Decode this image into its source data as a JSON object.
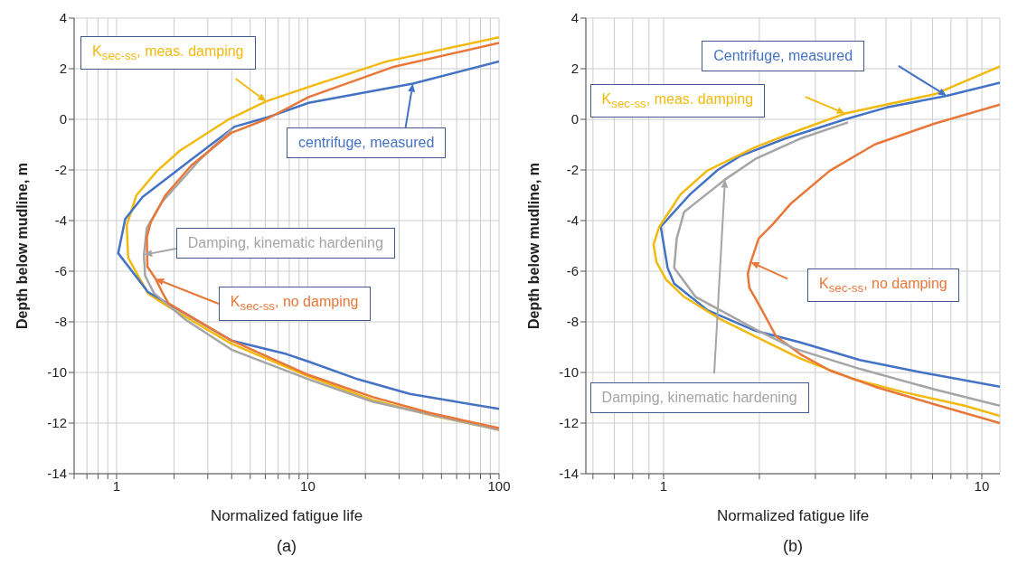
{
  "chart_data": [
    {
      "type": "line",
      "xlabel": "Normalized fatigue life",
      "ylabel": "Depth below mudline, m",
      "log": "x",
      "grid": true,
      "xlim": [
        0.6,
        100
      ],
      "ylim": [
        -14,
        4
      ],
      "xticks": [
        {
          "value": 0.6,
          "label": null
        },
        {
          "value": 0.7,
          "label": null
        },
        {
          "value": 0.8,
          "label": null
        },
        {
          "value": 0.9,
          "label": null
        },
        1,
        {
          "value": 2,
          "label": null
        },
        {
          "value": 3,
          "label": null
        },
        {
          "value": 4,
          "label": null
        },
        {
          "value": 5,
          "label": null
        },
        {
          "value": 6,
          "label": null
        },
        {
          "value": 7,
          "label": null
        },
        {
          "value": 8,
          "label": null
        },
        {
          "value": 9,
          "label": null
        },
        10,
        {
          "value": 20,
          "label": null
        },
        {
          "value": 30,
          "label": null
        },
        {
          "value": 40,
          "label": null
        },
        {
          "value": 50,
          "label": null
        },
        {
          "value": 60,
          "label": null
        },
        {
          "value": 70,
          "label": null
        },
        {
          "value": 80,
          "label": null
        },
        {
          "value": 90,
          "label": null
        },
        100
      ],
      "yticks": [
        -14,
        -12,
        -10,
        -8,
        -6,
        -4,
        -2,
        0,
        2,
        4
      ],
      "annotations": [
        "(a)"
      ],
      "series": [
        {
          "name": "K$_{sec-ss}$, meas. damping",
          "color": "#f2b90f",
          "x": [
            100,
            25.9,
            10.2,
            6.05,
            3.86,
            2.14,
            1.62,
            1.27,
            1.13,
            1.15,
            1.46,
            1.8,
            3.98,
            10,
            21.8,
            43.5,
            100
          ],
          "values": [
            3.24,
            2.29,
            1.29,
            0.71,
            0,
            -1.24,
            -2.06,
            -3.0,
            -4.18,
            -5.47,
            -6.88,
            -7.33,
            -8.86,
            -10.15,
            -11.09,
            -11.68,
            -12.27
          ]
        },
        {
          "name": "centrifuge, measured",
          "color": "#4472c4",
          "x": [
            100,
            35.4,
            10.1,
            6.05,
            4.14,
            2.46,
            1.37,
            1.11,
            1.02,
            1.46,
            3.99,
            7.71,
            10.1,
            18.3,
            34.2,
            100
          ],
          "values": [
            2.29,
            1.41,
            0.65,
            0.06,
            -0.29,
            -1.59,
            -3.06,
            -3.94,
            -5.29,
            -6.82,
            -8.74,
            -9.27,
            -9.57,
            -10.27,
            -10.85,
            -11.44
          ]
        },
        {
          "name": "Damping, kinematic hardening",
          "color": "#a5a5a5",
          "x": [
            4.0,
            2.73,
            1.74,
            1.44,
            1.39,
            1.41,
            1.57,
            2.3,
            3.99,
            10.1,
            21.8,
            100
          ],
          "values": [
            -0.4,
            -1.59,
            -3.24,
            -4.29,
            -5.35,
            -6.18,
            -6.87,
            -7.92,
            -9.1,
            -10.27,
            -11.15,
            -12.27
          ]
        },
        {
          "name": "K$_{sec-ss}$, no damping",
          "color": "#e8773a",
          "x": [
            100,
            27.7,
            10.1,
            6.05,
            3.99,
            2.46,
            1.8,
            1.51,
            1.44,
            1.45,
            1.6,
            1.75,
            1.87,
            3.99,
            10.1,
            21.8,
            43.5,
            100
          ],
          "values": [
            3.02,
            2.06,
            0.88,
            0,
            -0.53,
            -1.82,
            -3.0,
            -4.06,
            -4.65,
            -5.82,
            -6.3,
            -6.9,
            -7.27,
            -8.74,
            -10.1,
            -10.97,
            -11.6,
            -12.2
          ]
        }
      ]
    },
    {
      "type": "line",
      "xlabel": "Normalized fatigue life",
      "ylabel": "Depth below mudline, m",
      "log": "x",
      "grid": true,
      "xlim": [
        0.57,
        11.4
      ],
      "ylim": [
        -14,
        4
      ],
      "xticks": [
        {
          "value": 0.6,
          "label": null
        },
        {
          "value": 0.7,
          "label": null
        },
        {
          "value": 0.8,
          "label": null
        },
        {
          "value": 0.9,
          "label": null
        },
        1,
        {
          "value": 2,
          "label": null
        },
        {
          "value": 3,
          "label": null
        },
        {
          "value": 4,
          "label": null
        },
        {
          "value": 5,
          "label": null
        },
        {
          "value": 6,
          "label": null
        },
        {
          "value": 7,
          "label": null
        },
        {
          "value": 8,
          "label": null
        },
        {
          "value": 9,
          "label": null
        },
        10
      ],
      "yticks": [
        -14,
        -12,
        -10,
        -8,
        -6,
        -4,
        -2,
        0,
        2,
        4
      ],
      "annotations": [
        "(b)"
      ],
      "series": [
        {
          "name": "Centrifuge, measured",
          "color": "#4472c4",
          "x": [
            11.4,
            7.75,
            5.03,
            3.72,
            2.41,
            1.74,
            1.48,
            1.21,
            0.98,
            1.03,
            1.08,
            1.37,
            1.94,
            2.69,
            4.14,
            6.37,
            11.4
          ],
          "values": [
            1.45,
            0.93,
            0.47,
            0,
            -0.76,
            -1.45,
            -2.0,
            -2.97,
            -4.24,
            -5.87,
            -6.49,
            -7.53,
            -8.35,
            -8.81,
            -9.51,
            -9.98,
            -10.56
          ]
        },
        {
          "name": "K$_{sec-ss}$, meas. damping",
          "color": "#f2b90f",
          "x": [
            11.4,
            7.1,
            3.72,
            2.69,
            1.94,
            1.37,
            1.13,
            0.97,
            0.93,
            0.95,
            1.02,
            1.16,
            1.5,
            1.94,
            2.69,
            3.96,
            5.73,
            8.83,
            11.4
          ],
          "values": [
            2.09,
            0.99,
            0.23,
            -0.41,
            -1.1,
            -2.03,
            -2.97,
            -4.24,
            -4.94,
            -5.64,
            -6.34,
            -7.01,
            -7.88,
            -8.58,
            -9.45,
            -10.27,
            -10.79,
            -11.31,
            -11.72
          ]
        },
        {
          "name": "K$_{sec-ss}$, no damping",
          "color": "#e8773a",
          "x": [
            11.4,
            7.1,
            4.61,
            3.33,
            2.52,
            2.21,
            1.99,
            1.88,
            1.84,
            1.86,
            1.99,
            2.26,
            2.69,
            3.33,
            4.61,
            7.1,
            11.4
          ],
          "values": [
            0.58,
            -0.17,
            -0.99,
            -2.03,
            -3.31,
            -4.13,
            -4.71,
            -5.64,
            -6.1,
            -6.66,
            -7.3,
            -8.58,
            -9.28,
            -9.92,
            -10.56,
            -11.26,
            -12.0
          ]
        },
        {
          "name": "Damping, kinematic hardening",
          "color": "#a5a5a5",
          "x": [
            3.8,
            2.69,
            1.94,
            1.56,
            1.16,
            1.1,
            1.08,
            1.26,
            1.63,
            1.94,
            2.57,
            4.14,
            7.1,
            11.4
          ],
          "values": [
            -0.12,
            -0.76,
            -1.57,
            -2.38,
            -3.66,
            -4.71,
            -5.87,
            -7.01,
            -7.77,
            -8.29,
            -9.05,
            -9.86,
            -10.67,
            -11.31
          ]
        }
      ]
    }
  ]
}
